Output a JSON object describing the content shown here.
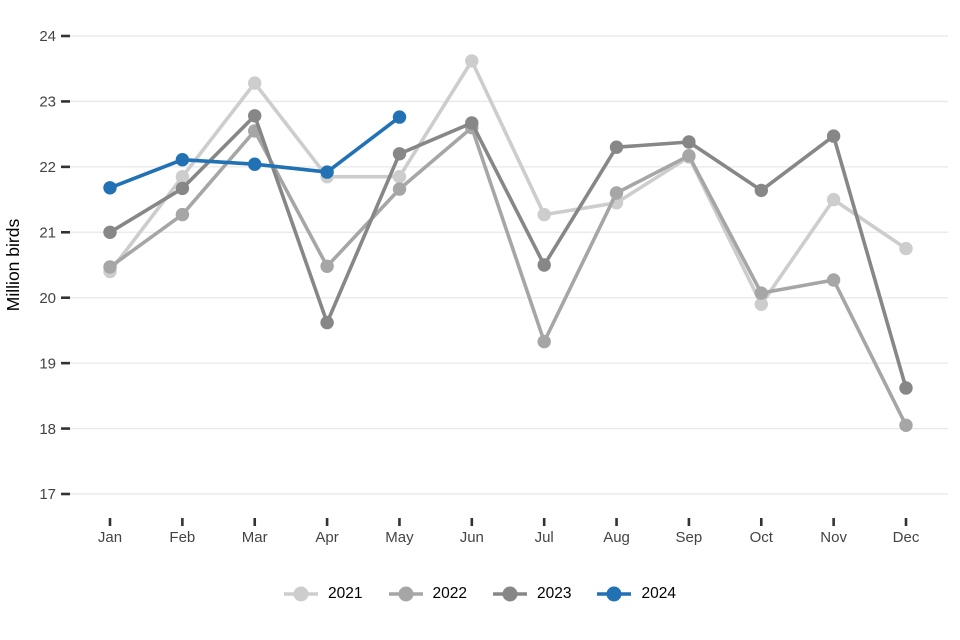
{
  "chart_data": {
    "type": "line",
    "title": "",
    "xlabel": "",
    "ylabel": "Million birds",
    "ylim": [
      17,
      24
    ],
    "y_ticks": [
      24,
      23,
      22,
      21,
      20,
      19,
      18,
      17
    ],
    "grid": "horizontal-only",
    "legend_position": "bottom-center",
    "background_color": "#ffffff",
    "gridline_color": "#e8e8e8",
    "tick_mark_color": "#333333",
    "tick_label_color": "#444444",
    "categories": [
      "Jan",
      "Feb",
      "Mar",
      "Apr",
      "May",
      "Jun",
      "Jul",
      "Aug",
      "Sep",
      "Oct",
      "Nov",
      "Dec"
    ],
    "series": [
      {
        "name": "2021",
        "color": "#cdcdcd",
        "values": [
          20.4,
          21.85,
          23.28,
          21.85,
          21.85,
          23.62,
          21.27,
          21.45,
          22.15,
          19.9,
          21.5,
          20.75
        ]
      },
      {
        "name": "2022",
        "color": "#a6a6a6",
        "values": [
          20.47,
          21.27,
          22.55,
          20.48,
          21.66,
          22.6,
          19.33,
          21.6,
          22.17,
          20.07,
          20.27,
          18.05
        ]
      },
      {
        "name": "2023",
        "color": "#878787",
        "values": [
          21.0,
          21.67,
          22.78,
          19.62,
          22.2,
          22.67,
          20.5,
          22.3,
          22.38,
          21.64,
          22.47,
          18.62
        ]
      },
      {
        "name": "2024",
        "color": "#2171b5",
        "values": [
          21.68,
          22.11,
          22.04,
          21.92,
          22.76,
          null,
          null,
          null,
          null,
          null,
          null,
          null
        ]
      }
    ]
  }
}
